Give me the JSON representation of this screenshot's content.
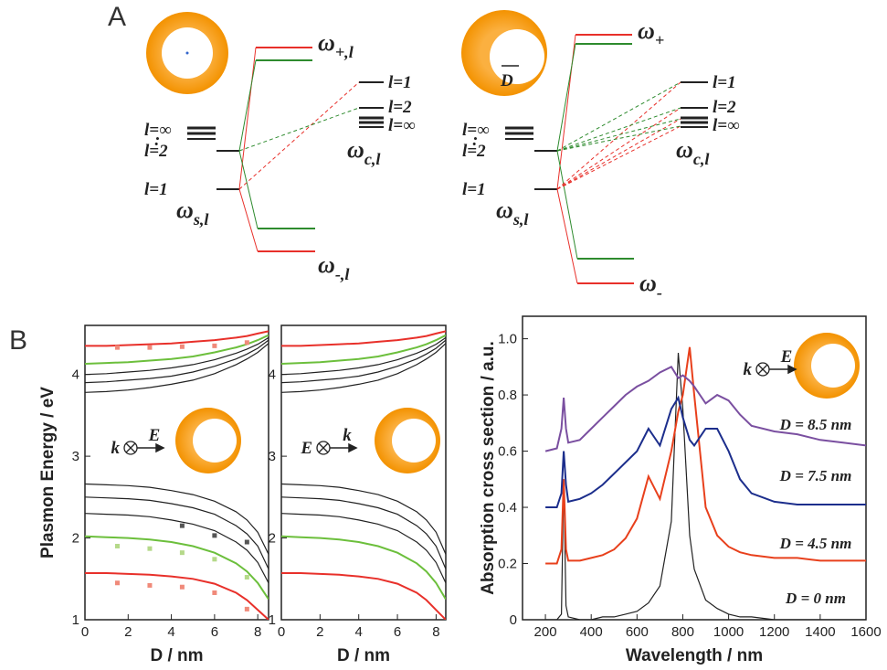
{
  "diagram": {
    "label": "A",
    "left": {
      "omega_plus": [
        "ω",
        "+,l"
      ],
      "omega_minus": [
        "ω",
        "-,l"
      ],
      "omega_s": [
        "ω",
        "s,l"
      ],
      "omega_c": [
        "ω",
        "c,l"
      ],
      "s_levels": [
        "l=∞",
        "l=2",
        "l=1"
      ],
      "c_levels": [
        "l=1",
        "l=2",
        "l=∞"
      ]
    },
    "right": {
      "omega_plus": [
        "ω",
        "+"
      ],
      "omega_minus": [
        "ω",
        "-"
      ],
      "omega_s": [
        "ω",
        "s,l"
      ],
      "omega_c": [
        "ω",
        "c,l"
      ],
      "s_levels": [
        "l=∞",
        "l=2",
        "l=1"
      ],
      "c_levels": [
        "l=1",
        "l=2",
        "l=∞"
      ],
      "offset": "D"
    }
  },
  "panel_b_label": "B",
  "chart_data": [
    {
      "type": "line",
      "x_label": "D / nm",
      "y_label": "Plasmon Energy / eV",
      "annotations": [
        "k",
        "E"
      ],
      "xlim": [
        0,
        8.5
      ],
      "xticks": [
        0,
        2,
        4,
        6,
        8
      ],
      "ylim": [
        1,
        4.6
      ],
      "yticks": [
        1,
        2,
        3,
        4
      ],
      "x": [
        0,
        1,
        2,
        3,
        4,
        5,
        6,
        7,
        7.5,
        8,
        8.5
      ],
      "series": [
        {
          "color": "#e8302a",
          "values": [
            1.57,
            1.57,
            1.56,
            1.55,
            1.53,
            1.5,
            1.44,
            1.33,
            1.24,
            1.12,
            1.0
          ]
        },
        {
          "color": "#6cbf3c",
          "values": [
            2.02,
            2.01,
            2.0,
            1.98,
            1.95,
            1.9,
            1.82,
            1.69,
            1.59,
            1.45,
            1.25
          ]
        },
        {
          "color": "#222222",
          "values": [
            2.3,
            2.29,
            2.28,
            2.26,
            2.22,
            2.17,
            2.09,
            1.95,
            1.85,
            1.7,
            1.45
          ]
        },
        {
          "color": "#222222",
          "values": [
            2.5,
            2.49,
            2.48,
            2.46,
            2.42,
            2.37,
            2.29,
            2.15,
            2.05,
            1.9,
            1.62
          ]
        },
        {
          "color": "#222222",
          "values": [
            2.66,
            2.65,
            2.64,
            2.62,
            2.58,
            2.53,
            2.45,
            2.32,
            2.22,
            2.07,
            1.8
          ]
        },
        {
          "color": "#222222",
          "values": [
            3.78,
            3.79,
            3.81,
            3.84,
            3.88,
            3.93,
            4.01,
            4.12,
            4.19,
            4.27,
            4.38
          ]
        },
        {
          "color": "#222222",
          "values": [
            3.9,
            3.91,
            3.93,
            3.95,
            3.98,
            4.03,
            4.1,
            4.19,
            4.25,
            4.32,
            4.42
          ]
        },
        {
          "color": "#222222",
          "values": [
            4.0,
            4.01,
            4.03,
            4.05,
            4.08,
            4.12,
            4.18,
            4.26,
            4.31,
            4.37,
            4.45
          ]
        },
        {
          "color": "#6cbf3c",
          "values": [
            4.13,
            4.14,
            4.15,
            4.17,
            4.19,
            4.22,
            4.27,
            4.33,
            4.37,
            4.42,
            4.48
          ]
        },
        {
          "color": "#e8302a",
          "values": [
            4.35,
            4.35,
            4.36,
            4.37,
            4.38,
            4.4,
            4.42,
            4.45,
            4.47,
            4.5,
            4.53
          ]
        },
        {
          "color": "#f08a7a",
          "marker": "square",
          "x": [
            1.5,
            3,
            4.5,
            6,
            7.5
          ],
          "values": [
            4.33,
            4.33,
            4.34,
            4.35,
            4.39
          ]
        },
        {
          "color": "#f08a7a",
          "marker": "square",
          "x": [
            1.5,
            3,
            4.5,
            6,
            7.5
          ],
          "values": [
            1.45,
            1.42,
            1.4,
            1.33,
            1.13
          ]
        },
        {
          "color": "#b5d98a",
          "marker": "square",
          "x": [
            1.5,
            3,
            4.5,
            6,
            7.5
          ],
          "values": [
            1.9,
            1.87,
            1.82,
            1.74,
            1.52
          ]
        },
        {
          "color": "#555555",
          "marker": "square",
          "x": [
            4.5,
            6,
            7.5
          ],
          "values": [
            2.15,
            2.03,
            1.95
          ]
        }
      ]
    },
    {
      "type": "line",
      "x_label": "D / nm",
      "annotations": [
        "E",
        "k"
      ],
      "xlim": [
        0,
        8.5
      ],
      "xticks": [
        0,
        2,
        4,
        6,
        8
      ],
      "ylim": [
        1,
        4.6
      ],
      "yticks": [
        1,
        2,
        3,
        4
      ],
      "x": [
        0,
        1,
        2,
        3,
        4,
        5,
        6,
        7,
        7.5,
        8,
        8.5
      ],
      "series": [
        {
          "color": "#e8302a",
          "values": [
            1.57,
            1.57,
            1.56,
            1.55,
            1.53,
            1.5,
            1.44,
            1.33,
            1.24,
            1.12,
            1.0
          ]
        },
        {
          "color": "#6cbf3c",
          "values": [
            2.02,
            2.01,
            2.0,
            1.98,
            1.95,
            1.9,
            1.82,
            1.69,
            1.59,
            1.45,
            1.25
          ]
        },
        {
          "color": "#222222",
          "values": [
            2.3,
            2.29,
            2.28,
            2.26,
            2.22,
            2.17,
            2.09,
            1.95,
            1.85,
            1.7,
            1.45
          ]
        },
        {
          "color": "#222222",
          "values": [
            2.5,
            2.49,
            2.48,
            2.46,
            2.42,
            2.37,
            2.29,
            2.15,
            2.05,
            1.9,
            1.62
          ]
        },
        {
          "color": "#222222",
          "values": [
            2.66,
            2.65,
            2.64,
            2.62,
            2.58,
            2.53,
            2.45,
            2.32,
            2.22,
            2.07,
            1.8
          ]
        },
        {
          "color": "#222222",
          "values": [
            3.78,
            3.79,
            3.81,
            3.84,
            3.88,
            3.93,
            4.01,
            4.12,
            4.19,
            4.27,
            4.38
          ]
        },
        {
          "color": "#222222",
          "values": [
            3.9,
            3.91,
            3.93,
            3.95,
            3.98,
            4.03,
            4.1,
            4.19,
            4.25,
            4.32,
            4.42
          ]
        },
        {
          "color": "#222222",
          "values": [
            4.0,
            4.01,
            4.03,
            4.05,
            4.08,
            4.12,
            4.18,
            4.26,
            4.31,
            4.37,
            4.45
          ]
        },
        {
          "color": "#6cbf3c",
          "values": [
            4.13,
            4.14,
            4.15,
            4.17,
            4.19,
            4.22,
            4.27,
            4.33,
            4.37,
            4.42,
            4.48
          ]
        },
        {
          "color": "#e8302a",
          "values": [
            4.35,
            4.35,
            4.36,
            4.37,
            4.38,
            4.4,
            4.42,
            4.45,
            4.47,
            4.5,
            4.53
          ]
        }
      ]
    },
    {
      "type": "line",
      "x_label": "Wavelength / nm",
      "y_label": "Absorption cross section / a.u.",
      "annotations": [
        "k",
        "E"
      ],
      "xlim": [
        100,
        1600
      ],
      "xticks": [
        200,
        400,
        600,
        800,
        1000,
        1200,
        1400,
        1600
      ],
      "ylim": [
        0,
        1.08
      ],
      "yticks": [
        0,
        0.2,
        0.4,
        0.6,
        0.8,
        {
          "value": 1,
          "label": "1.0"
        }
      ],
      "x": [
        200,
        250,
        270,
        280,
        290,
        300,
        350,
        400,
        450,
        500,
        550,
        600,
        650,
        700,
        750,
        780,
        800,
        830,
        850,
        900,
        950,
        1000,
        1050,
        1100,
        1200,
        1300,
        1400,
        1500,
        1600
      ],
      "series": [
        {
          "label": "D = 0 nm",
          "color": "#222222",
          "values": [
            0,
            0,
            0.02,
            0.5,
            0.05,
            0.01,
            0,
            0,
            0.01,
            0.01,
            0.02,
            0.03,
            0.06,
            0.12,
            0.35,
            0.95,
            0.75,
            0.3,
            0.18,
            0.07,
            0.04,
            0.02,
            0.01,
            0.01,
            0,
            0,
            0,
            0,
            0
          ]
        },
        {
          "label": "D = 4.5 nm",
          "color": "#e8401c",
          "values": [
            0.2,
            0.2,
            0.25,
            0.5,
            0.25,
            0.21,
            0.21,
            0.22,
            0.23,
            0.25,
            0.29,
            0.36,
            0.51,
            0.43,
            0.6,
            0.74,
            0.8,
            0.97,
            0.8,
            0.4,
            0.3,
            0.26,
            0.24,
            0.23,
            0.22,
            0.22,
            0.21,
            0.21,
            0.21
          ]
        },
        {
          "label": "D = 7.5 nm",
          "color": "#1c2e8c",
          "values": [
            0.4,
            0.4,
            0.45,
            0.6,
            0.48,
            0.42,
            0.43,
            0.45,
            0.48,
            0.52,
            0.56,
            0.6,
            0.68,
            0.62,
            0.75,
            0.79,
            0.72,
            0.64,
            0.62,
            0.68,
            0.68,
            0.6,
            0.5,
            0.45,
            0.42,
            0.41,
            0.41,
            0.41,
            0.41
          ]
        },
        {
          "label": "D = 8.5 nm",
          "color": "#7a4fa0",
          "values": [
            0.6,
            0.61,
            0.68,
            0.79,
            0.68,
            0.63,
            0.64,
            0.68,
            0.72,
            0.76,
            0.8,
            0.83,
            0.85,
            0.88,
            0.9,
            0.86,
            0.87,
            0.85,
            0.83,
            0.77,
            0.8,
            0.78,
            0.73,
            0.69,
            0.67,
            0.66,
            0.64,
            0.63,
            0.62
          ]
        }
      ]
    }
  ]
}
